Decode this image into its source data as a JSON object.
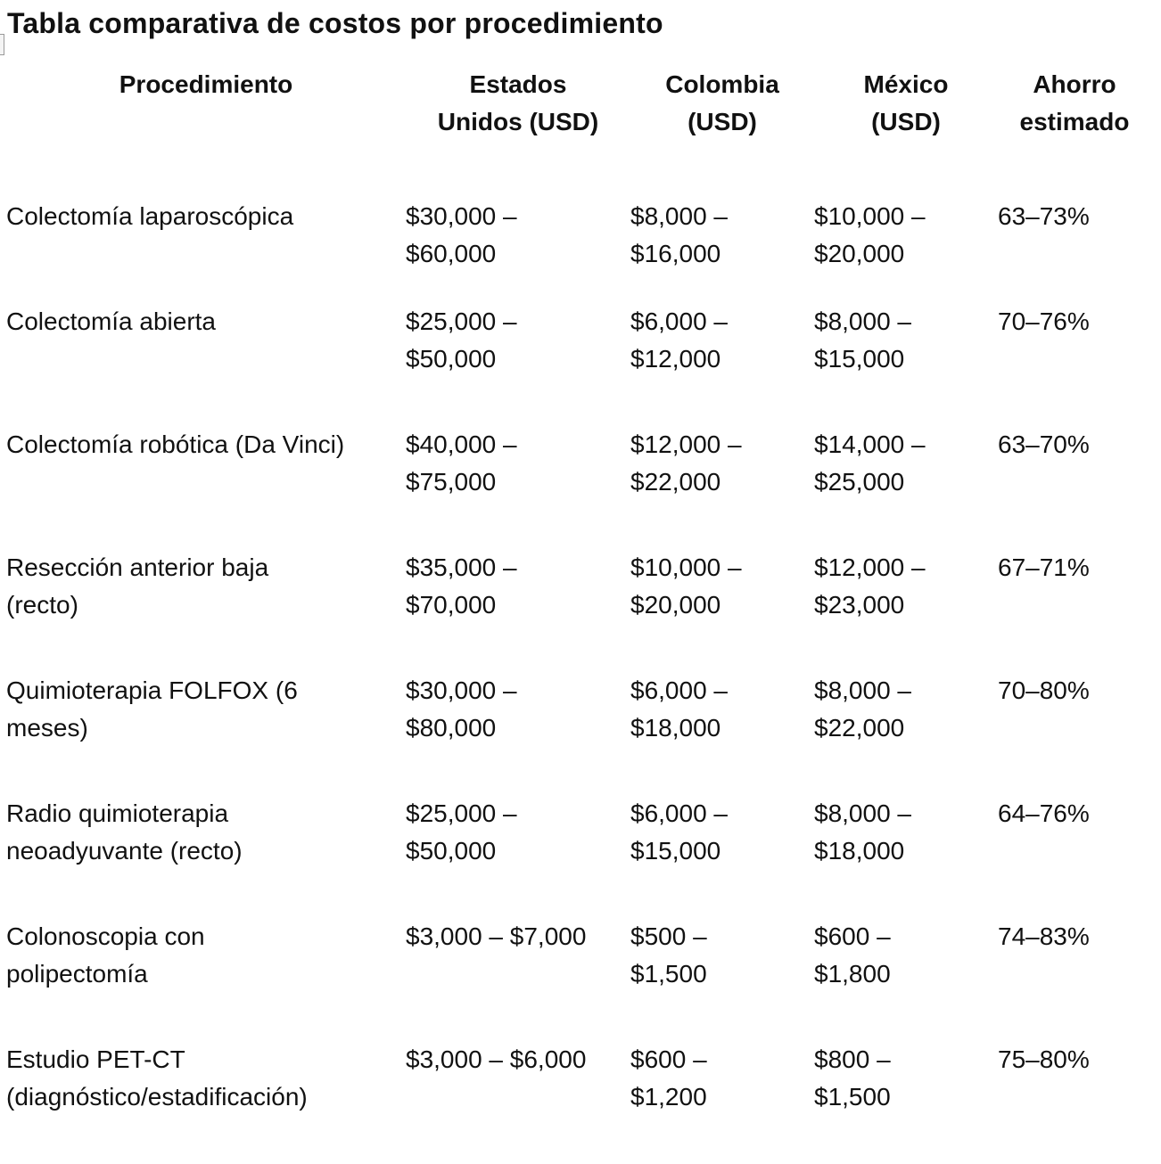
{
  "title": "Tabla comparativa de costos por procedimiento",
  "table": {
    "headers": [
      "Procedimiento",
      "Estados\nUnidos (USD)",
      "Colombia\n(USD)",
      "México\n(USD)",
      "Ahorro\nestimado"
    ],
    "rows": [
      [
        "Colectomía laparoscópica",
        "$30,000 –\n$60,000",
        "$8,000 –\n$16,000",
        "$10,000 –\n$20,000",
        "63–73%"
      ],
      [
        "Colectomía abierta",
        "$25,000 –\n$50,000",
        "$6,000 –\n$12,000",
        "$8,000 –\n$15,000",
        "70–76%"
      ],
      [
        "Colectomía robótica (Da Vinci)",
        "$40,000 –\n$75,000",
        "$12,000 –\n$22,000",
        "$14,000 –\n$25,000",
        "63–70%"
      ],
      [
        "Resección anterior baja\n(recto)",
        "$35,000 –\n$70,000",
        "$10,000 –\n$20,000",
        "$12,000 –\n$23,000",
        "67–71%"
      ],
      [
        "Quimioterapia FOLFOX (6\nmeses)",
        "$30,000 –\n$80,000",
        "$6,000 –\n$18,000",
        "$8,000 –\n$22,000",
        "70–80%"
      ],
      [
        "Radio quimioterapia\nneoadyuvante (recto)",
        "$25,000 –\n$50,000",
        "$6,000 –\n$15,000",
        "$8,000 –\n$18,000",
        "64–76%"
      ],
      [
        "Colonoscopia con\npolipectomía",
        "$3,000 – $7,000",
        "$500 –\n$1,500",
        "$600 –\n$1,800",
        "74–83%"
      ],
      [
        "Estudio PET-CT\n(diagnóstico/estadificación)",
        "$3,000 – $6,000",
        "$600 –\n$1,200",
        "$800 –\n$1,500",
        "75–80%"
      ]
    ]
  }
}
